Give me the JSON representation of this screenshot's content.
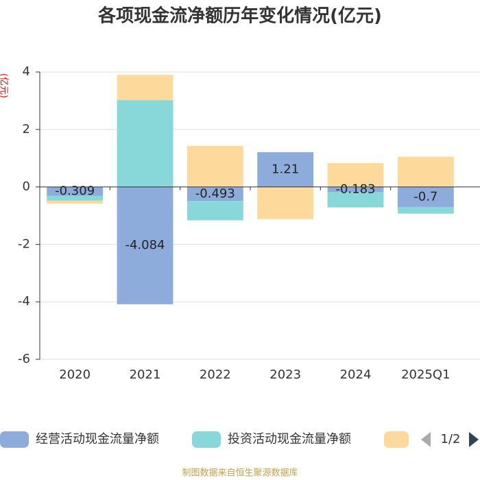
{
  "chart_data": {
    "type": "bar",
    "stacked": true,
    "title": "各项现金流净额历年变化情况(亿元)",
    "y_label": "(亿元)",
    "source": "制图数据来自恒生聚源数据库",
    "legend_page": "1/2",
    "categories": [
      "2020",
      "2021",
      "2022",
      "2023",
      "2024",
      "2025Q1"
    ],
    "series": [
      {
        "name": "经营活动现金流量净额",
        "color": "#8eacdb",
        "values": [
          -0.309,
          -4.084,
          -0.493,
          1.21,
          -0.183,
          -0.7
        ],
        "labels": true
      },
      {
        "name": "投资活动现金流量净额",
        "color": "#88d7d9",
        "values": [
          -0.17,
          3.02,
          -0.67,
          0,
          -0.53,
          -0.23
        ]
      },
      {
        "color": "#fdd99b",
        "values": [
          -0.1,
          0.88,
          1.43,
          -1.12,
          0.83,
          1.05
        ]
      }
    ],
    "ylim": [
      -6,
      4
    ],
    "yticks": [
      -6,
      -4,
      -2,
      0,
      2,
      4
    ],
    "grid": true
  }
}
